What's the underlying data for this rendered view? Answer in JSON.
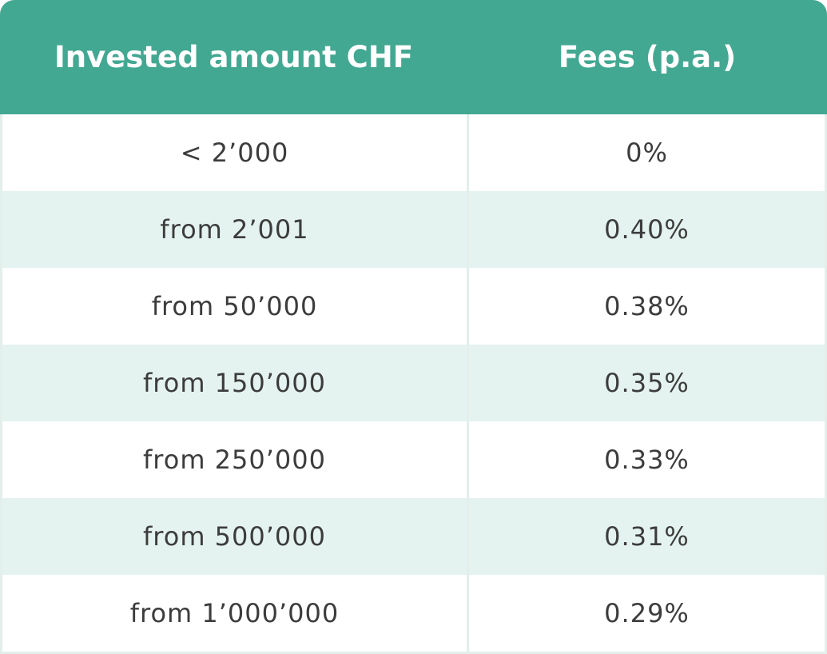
{
  "table": {
    "header": [
      "Invested amount CHF",
      "Fees (p.a.)"
    ],
    "rows": [
      [
        "< 2’000",
        "0%"
      ],
      [
        "from 2’001",
        "0.40%"
      ],
      [
        "from 50’000",
        "0.38%"
      ],
      [
        "from 150’000",
        "0.35%"
      ],
      [
        "from 250’000",
        "0.33%"
      ],
      [
        "from 500’000",
        "0.31%"
      ],
      [
        "from 1’000’000",
        "0.29%"
      ]
    ]
  }
}
